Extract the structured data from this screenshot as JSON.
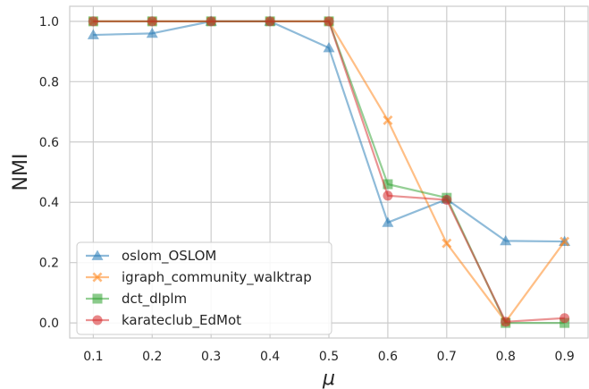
{
  "chart_data": {
    "type": "line",
    "xlabel": "μ",
    "ylabel": "NMI",
    "x": [
      0.1,
      0.2,
      0.3,
      0.4,
      0.5,
      0.6,
      0.7,
      0.8,
      0.9
    ],
    "x_tick_labels": [
      "0.1",
      "0.2",
      "0.3",
      "0.4",
      "0.5",
      "0.6",
      "0.7",
      "0.8",
      "0.9"
    ],
    "xlim": [
      0.06,
      0.94
    ],
    "ylim": [
      -0.05,
      1.05
    ],
    "y_ticks": [
      0.0,
      0.2,
      0.4,
      0.6,
      0.8,
      1.0
    ],
    "y_tick_labels": [
      "0.0",
      "0.2",
      "0.4",
      "0.6",
      "0.8",
      "1.0"
    ],
    "grid": true,
    "legend_position": "lower-left",
    "series": [
      {
        "name": "oslom_OSLOM",
        "color": "#1f77b4",
        "marker": "triangle",
        "values": [
          0.955,
          0.96,
          1.0,
          1.0,
          0.912,
          0.333,
          0.41,
          0.272,
          0.27
        ]
      },
      {
        "name": "igraph_community_walktrap",
        "color": "#ff7f0e",
        "marker": "x",
        "values": [
          1.0,
          1.0,
          1.0,
          1.0,
          1.0,
          0.672,
          0.264,
          0.004,
          0.27
        ]
      },
      {
        "name": "dct_dlplm",
        "color": "#2ca02c",
        "marker": "square",
        "values": [
          1.0,
          1.0,
          1.0,
          1.0,
          1.0,
          0.46,
          0.415,
          0.0,
          0.0
        ]
      },
      {
        "name": "karateclub_EdMot",
        "color": "#d62728",
        "marker": "circle",
        "values": [
          1.0,
          1.0,
          1.0,
          1.0,
          1.0,
          0.422,
          0.408,
          0.004,
          0.016
        ]
      }
    ]
  }
}
